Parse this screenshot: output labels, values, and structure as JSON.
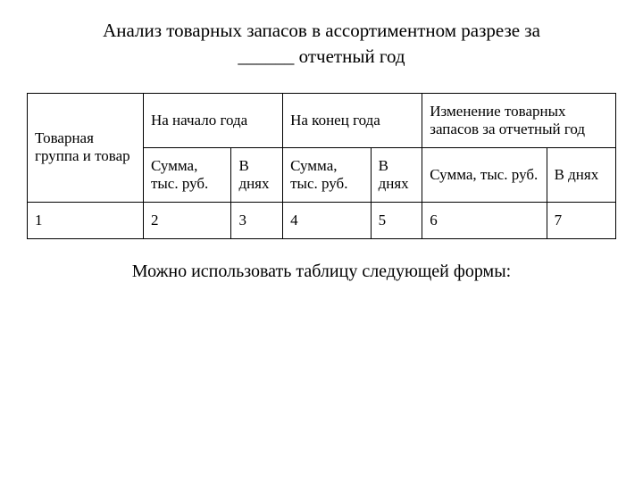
{
  "title": {
    "line1": "Анализ товарных запасов в ассортиментном разрезе за",
    "line2": "______ отчетный год"
  },
  "table": {
    "columns": [
      {
        "header": "Товарная группа и товар",
        "rowspan": 2
      },
      {
        "header": "На начало года",
        "colspan": 2
      },
      {
        "header": "На конец года",
        "colspan": 2
      },
      {
        "header": "Изменение товарных запасов за отчетный год",
        "colspan": 2
      }
    ],
    "subheaders": [
      "Сумма, тыс. руб.",
      "В днях",
      "Сумма, тыс. руб.",
      "В днях",
      "Сумма, тыс. руб.",
      "В днях"
    ],
    "rows": [
      [
        "1",
        "2",
        "3",
        "4",
        "5",
        "6",
        "7"
      ]
    ],
    "border_color": "#000000",
    "font_size": 17
  },
  "footer": "Можно использовать таблицу следующей формы:",
  "background_color": "#ffffff"
}
